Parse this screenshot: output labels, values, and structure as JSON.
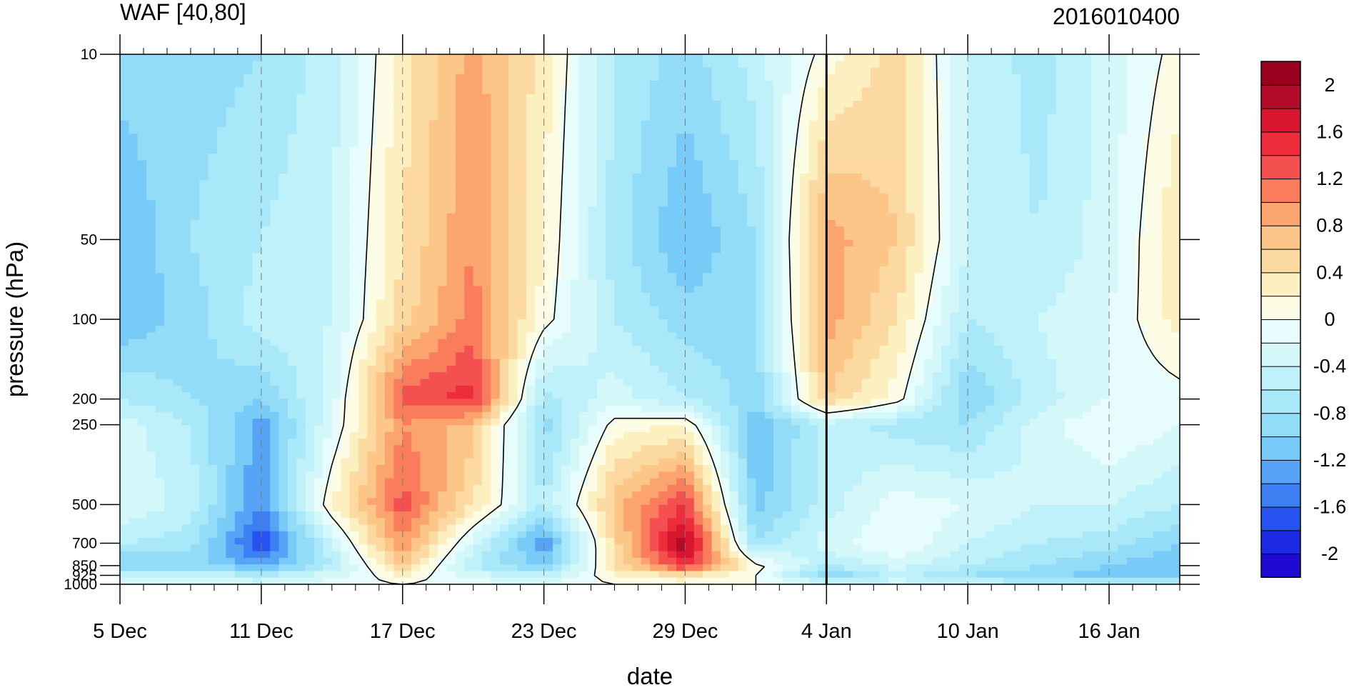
{
  "chart_data": {
    "type": "heatmap",
    "title": "WAF [40,80]",
    "subtitle_right": "2016010400",
    "xlabel": "date",
    "ylabel": "pressure (hPa)",
    "y_scale": "log",
    "y_reversed": true,
    "ylim": [
      1000,
      10
    ],
    "xlim": [
      "2015-12-05",
      "2016-01-19"
    ],
    "x_ticks": [
      {
        "date": "2015-12-05",
        "label": "5 Dec"
      },
      {
        "date": "2015-12-11",
        "label": "11 Dec"
      },
      {
        "date": "2015-12-17",
        "label": "17 Dec"
      },
      {
        "date": "2015-12-23",
        "label": "23 Dec"
      },
      {
        "date": "2015-12-29",
        "label": "29 Dec"
      },
      {
        "date": "2016-01-04",
        "label": "4 Jan"
      },
      {
        "date": "2016-01-10",
        "label": "10 Jan"
      },
      {
        "date": "2016-01-16",
        "label": "16 Jan"
      }
    ],
    "y_ticks": [
      {
        "value": 10,
        "label": "10"
      },
      {
        "value": 50,
        "label": "50"
      },
      {
        "value": 100,
        "label": "100"
      },
      {
        "value": 200,
        "label": "200"
      },
      {
        "value": 250,
        "label": "250"
      },
      {
        "value": 500,
        "label": "500"
      },
      {
        "value": 700,
        "label": "700"
      },
      {
        "value": 850,
        "label": "850"
      },
      {
        "value": 925,
        "label": "925"
      },
      {
        "value": 1000,
        "label": "1000"
      }
    ],
    "vertical_marker_date": "2016-01-04",
    "colorbar": {
      "levels": [
        -2.2,
        -2.0,
        -1.8,
        -1.6,
        -1.4,
        -1.2,
        -1.0,
        -0.8,
        -0.6,
        -0.4,
        -0.2,
        0.0,
        0.2,
        0.4,
        0.6,
        0.8,
        1.0,
        1.2,
        1.4,
        1.6,
        1.8,
        2.0,
        2.2
      ],
      "tick_values": [
        -2.0,
        -1.6,
        -1.2,
        -0.8,
        -0.4,
        0.0,
        0.4,
        0.8,
        1.2,
        1.6,
        2.0
      ],
      "tick_labels": [
        "-2",
        "-1.6",
        "-1.2",
        "-0.8",
        "-0.4",
        "0",
        "0.4",
        "0.8",
        "1.2",
        "1.6",
        "2"
      ],
      "colors": [
        "#1e0ad2",
        "#1c2ae4",
        "#2653f0",
        "#3b7ff2",
        "#57a3f5",
        "#79cbf7",
        "#92dcf8",
        "#a9e8f8",
        "#bef1f9",
        "#d4f8fa",
        "#e7fcfc",
        "#fdfde5",
        "#fcf0c0",
        "#fcd9a0",
        "#fcc689",
        "#fba46e",
        "#f97d5c",
        "#f45050",
        "#ee2d3c",
        "#d9162f",
        "#b30b2a",
        "#99001e"
      ]
    },
    "grid_dates": [
      "2015-12-05",
      "2015-12-08",
      "2015-12-11",
      "2015-12-14",
      "2015-12-17",
      "2015-12-20",
      "2015-12-23",
      "2015-12-26",
      "2015-12-29",
      "2016-01-01",
      "2016-01-04",
      "2016-01-07",
      "2016-01-10",
      "2016-01-13",
      "2016-01-16",
      "2016-01-19"
    ],
    "grid_levels": [
      10,
      50,
      100,
      200,
      250,
      500,
      700,
      850,
      925,
      1000
    ],
    "values": [
      [
        -0.9,
        -0.9,
        -0.8,
        -0.5,
        0.3,
        0.9,
        0.3,
        -0.6,
        -0.9,
        -0.5,
        0.1,
        0.5,
        -0.4,
        -0.7,
        -0.3,
        0.1
      ],
      [
        -1.2,
        -0.8,
        -0.6,
        -0.4,
        0.4,
        1.0,
        0.2,
        -0.7,
        -1.2,
        -0.8,
        0.9,
        0.6,
        -0.4,
        -0.6,
        -0.3,
        0.4
      ],
      [
        -1.2,
        -0.9,
        -0.5,
        -0.4,
        0.5,
        1.1,
        0.1,
        -0.6,
        -0.9,
        -0.9,
        0.9,
        0.4,
        -0.6,
        -0.4,
        -0.2,
        0.3
      ],
      [
        -0.6,
        -0.8,
        -1.0,
        -0.3,
        1.3,
        1.5,
        -0.7,
        -0.3,
        -0.6,
        -0.9,
        0.6,
        0.1,
        -1.0,
        -0.5,
        -0.2,
        -0.1
      ],
      [
        -0.3,
        -0.6,
        -1.3,
        -0.2,
        1.0,
        0.7,
        -0.9,
        0.1,
        0.2,
        -1.2,
        -0.5,
        -0.7,
        -0.8,
        -0.3,
        0.0,
        -0.2
      ],
      [
        -0.2,
        -0.5,
        -1.4,
        0.2,
        1.3,
        0.4,
        -0.6,
        0.7,
        1.4,
        -1.1,
        -0.5,
        -0.1,
        -0.2,
        -0.4,
        -0.4,
        -0.6
      ],
      [
        -0.6,
        -0.7,
        -1.8,
        -0.4,
        1.0,
        -0.3,
        -1.4,
        0.5,
        2.0,
        -0.8,
        -0.3,
        0.0,
        -0.4,
        -0.6,
        -0.7,
        -1.0
      ],
      [
        -1.1,
        -0.9,
        -1.3,
        -0.6,
        0.6,
        -0.6,
        -1.1,
        0.4,
        1.5,
        0.1,
        -0.6,
        -0.3,
        -0.6,
        -0.8,
        -1.0,
        -1.2
      ],
      [
        -0.5,
        -0.4,
        -0.6,
        -0.3,
        0.2,
        -0.3,
        -0.5,
        0.2,
        0.4,
        0.0,
        -1.0,
        -0.5,
        -0.8,
        -0.9,
        -1.1,
        -1.0
      ],
      [
        -0.2,
        -0.2,
        -0.3,
        -0.1,
        0.0,
        -0.1,
        -0.2,
        0.0,
        0.1,
        0.0,
        -0.3,
        -0.3,
        -0.4,
        -0.5,
        -0.5,
        -0.4
      ]
    ]
  }
}
